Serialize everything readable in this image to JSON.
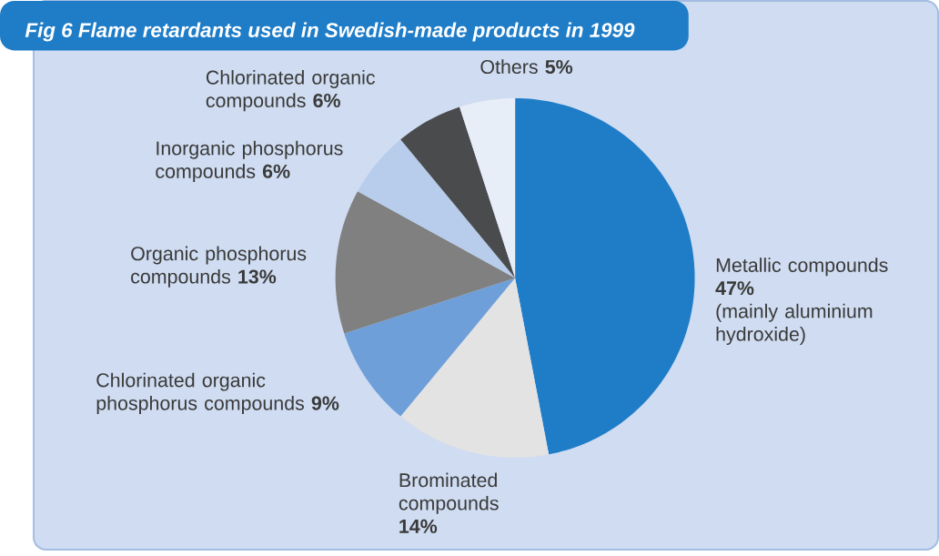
{
  "chart_data": {
    "type": "pie",
    "title": "Fig 6  Flame retardants used in Swedish-made products in 1999",
    "categories": [
      "Metallic compounds",
      "Brominated compounds",
      "Chlorinated organic phosphorus compounds",
      "Organic phosphorus compounds",
      "Inorganic phosphorus compounds",
      "Chlorinated organic compounds",
      "Others"
    ],
    "values": [
      47,
      14,
      9,
      13,
      6,
      6,
      5
    ],
    "colors": [
      "#1f7dc8",
      "#e3e3e3",
      "#6f9fd8",
      "#808080",
      "#b8cdeb",
      "#4a4b4d",
      "#e8eef8"
    ],
    "value_labels": [
      "47%",
      "14%",
      "9%",
      "13%",
      "6%",
      "6%",
      "5%"
    ],
    "annotations": [
      "(mainly aluminium hydroxide)"
    ]
  }
}
